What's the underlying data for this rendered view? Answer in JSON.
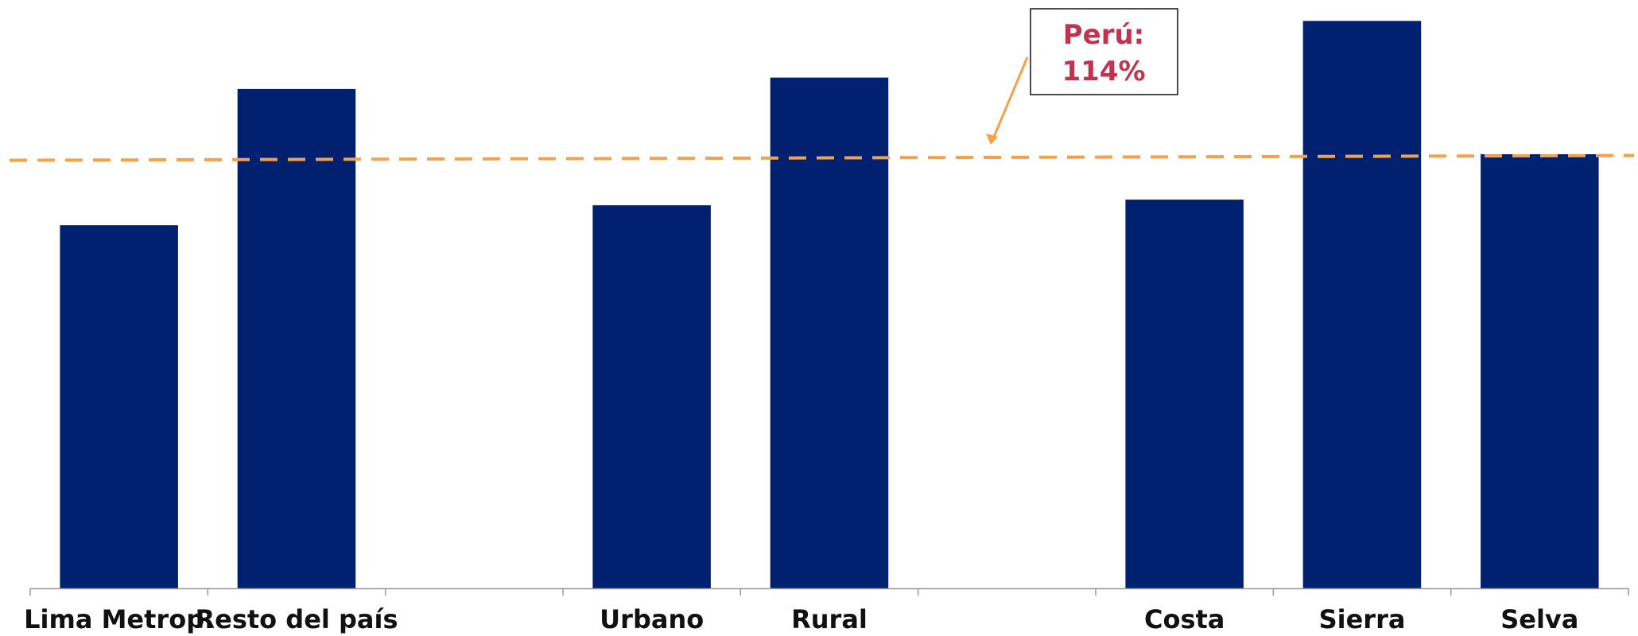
{
  "chart_data": {
    "type": "bar",
    "categories": [
      "Lima Metrop.",
      "Resto del país",
      "",
      "Urbano",
      "Rural",
      "",
      "Costa",
      "Sierra",
      "Selva"
    ],
    "values": [
      102,
      126,
      null,
      105.5,
      128,
      null,
      106.5,
      138,
      114.5
    ],
    "ylim": [
      38,
      140
    ],
    "reference_line": {
      "value": 114,
      "label_line1": "Perú:",
      "label_line2": "114%"
    },
    "grid": false,
    "legend": "none",
    "colors": {
      "bar": "#002070",
      "reference_line": "#F5A04A",
      "annotation_text": "#C0344F",
      "axis": "#999999"
    }
  }
}
